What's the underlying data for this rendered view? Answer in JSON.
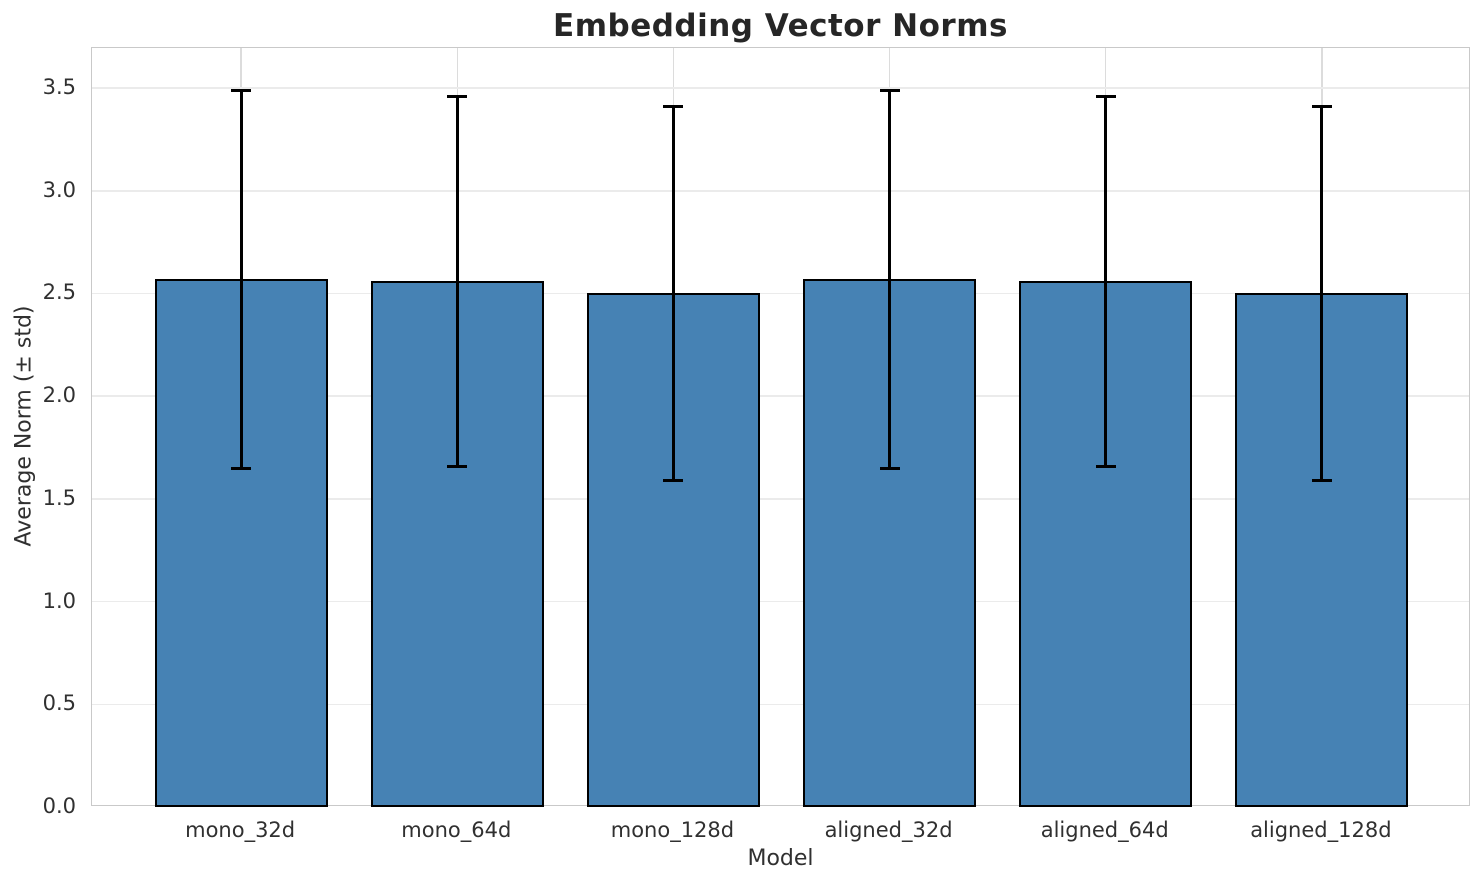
{
  "chart_data": {
    "type": "bar",
    "title": "Embedding Vector Norms",
    "xlabel": "Model",
    "ylabel": "Average Norm (± std)",
    "categories": [
      "mono_32d",
      "mono_64d",
      "mono_128d",
      "aligned_32d",
      "aligned_64d",
      "aligned_128d"
    ],
    "series": [
      {
        "name": "Average Norm",
        "values": [
          2.57,
          2.56,
          2.5,
          2.57,
          2.56,
          2.5
        ],
        "errors": [
          0.92,
          0.9,
          0.91,
          0.92,
          0.9,
          0.91
        ]
      }
    ],
    "yticks": [
      0.0,
      0.5,
      1.0,
      1.5,
      2.0,
      2.5,
      3.0,
      3.5
    ],
    "ytick_format_decimals": 1,
    "ylim": [
      0,
      3.695
    ],
    "grid": true,
    "legend_position": "none",
    "colors": {
      "bar_fill": "#4682b4",
      "bar_edge": "#000000",
      "error_bar": "#000000",
      "grid_horizontal": "#ebebeb",
      "grid_vertical": "#dcdcdc",
      "spine": "#c9c9c9",
      "tick_text": "#303030",
      "title_text": "#262626"
    }
  }
}
